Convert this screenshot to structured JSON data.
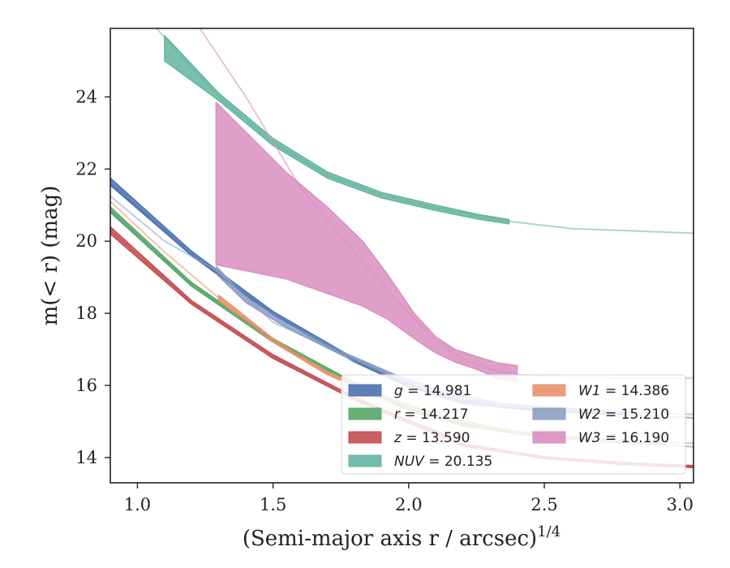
{
  "chart_data": {
    "type": "line",
    "xlabel": "(Semi-major axis r / arcsec)",
    "xlabel_exp": "1/4",
    "ylabel": "m(< r) (mag)",
    "xlim": [
      0.9,
      3.05
    ],
    "ylim": [
      25.9,
      13.3
    ],
    "y_inverted": true,
    "xticks": [
      1.0,
      1.5,
      2.0,
      2.5,
      3.0
    ],
    "xtick_labels": [
      "1.0",
      "1.5",
      "2.0",
      "2.5",
      "3.0"
    ],
    "yticks": [
      14,
      16,
      18,
      20,
      22,
      24
    ],
    "ytick_labels": [
      "14",
      "16",
      "18",
      "20",
      "22",
      "24"
    ],
    "legend_placement": "lower-right",
    "series": [
      {
        "band": "g",
        "total": "14.981",
        "color": "#4C72B0",
        "band_x": [
          0.9,
          1.2,
          1.5,
          1.8,
          2.0,
          2.2,
          2.5,
          2.8
        ],
        "band_lo": [
          21.55,
          19.6,
          17.95,
          16.65,
          15.95,
          15.5,
          15.28,
          15.18
        ],
        "band_hi": [
          21.75,
          19.72,
          18.05,
          16.75,
          16.05,
          15.58,
          15.36,
          15.26
        ],
        "line_x": [
          0.9,
          1.2,
          1.5,
          1.8,
          2.0,
          2.2,
          2.5,
          2.8,
          3.05
        ],
        "line_y": [
          21.6,
          19.62,
          17.98,
          16.7,
          16.0,
          15.52,
          15.3,
          15.18,
          15.1
        ]
      },
      {
        "band": "r",
        "total": "14.217",
        "color": "#55A868",
        "band_x": [
          0.9,
          1.2,
          1.5,
          1.8,
          2.0,
          2.2,
          2.5,
          2.8,
          2.95
        ],
        "band_lo": [
          20.8,
          18.75,
          17.2,
          16.0,
          15.3,
          14.88,
          14.55,
          14.4,
          14.36
        ],
        "band_hi": [
          20.95,
          18.85,
          17.3,
          16.08,
          15.38,
          14.95,
          14.62,
          14.46,
          14.42
        ],
        "line_x": [
          0.9,
          1.2,
          1.5,
          1.8,
          2.0,
          2.2,
          2.5,
          2.8,
          3.05
        ],
        "line_y": [
          20.85,
          18.8,
          17.25,
          16.04,
          15.34,
          14.9,
          14.58,
          14.42,
          14.3
        ]
      },
      {
        "band": "z",
        "total": "13.590",
        "color": "#C44E52",
        "band_x": [
          0.9,
          1.2,
          1.5,
          1.8,
          2.0,
          2.1,
          2.2,
          2.5,
          2.8,
          3.05
        ],
        "band_lo": [
          20.2,
          18.25,
          16.75,
          15.6,
          14.95,
          14.65,
          14.32,
          13.97,
          13.8,
          13.72
        ],
        "band_hi": [
          20.4,
          18.35,
          16.85,
          15.68,
          15.03,
          14.75,
          14.38,
          14.03,
          13.86,
          13.78
        ],
        "line_x": [
          0.9,
          1.2,
          1.5,
          1.8,
          2.0,
          2.1,
          2.2,
          2.5,
          2.8,
          3.05
        ],
        "line_y": [
          20.3,
          18.3,
          16.8,
          15.64,
          14.99,
          14.7,
          14.35,
          14.0,
          13.83,
          13.75
        ]
      },
      {
        "band": "NUV",
        "total": "20.135",
        "color": "#64B5A0",
        "band_x": [
          1.1,
          1.3,
          1.5,
          1.7,
          1.9,
          2.1,
          2.25,
          2.37
        ],
        "band_lo": [
          25.0,
          23.9,
          22.65,
          21.75,
          21.2,
          20.85,
          20.62,
          20.48
        ],
        "band_hi": [
          25.7,
          24.1,
          22.85,
          21.92,
          21.35,
          21.0,
          20.75,
          20.6
        ],
        "line_x": [
          1.07,
          1.3,
          1.5,
          1.7,
          1.9,
          2.1,
          2.37,
          2.6,
          3.05
        ],
        "line_y": [
          25.9,
          24.0,
          22.75,
          21.83,
          21.28,
          20.92,
          20.55,
          20.35,
          20.22
        ]
      },
      {
        "band": "W1",
        "total": "14.386",
        "color": "#E8926B",
        "band_x": [
          1.3,
          1.5,
          1.7,
          1.9,
          2.1,
          2.3,
          2.5,
          2.7
        ],
        "band_lo": [
          18.35,
          17.2,
          16.3,
          15.65,
          15.15,
          14.8,
          14.55,
          14.45
        ],
        "band_hi": [
          18.5,
          17.3,
          16.38,
          15.72,
          15.22,
          14.86,
          14.6,
          14.5
        ],
        "line_x": [
          0.9,
          1.1,
          1.3,
          1.5,
          1.7,
          1.9,
          2.1,
          2.3,
          2.5,
          2.8,
          3.05
        ],
        "line_y": [
          21.1,
          19.7,
          18.42,
          17.25,
          16.34,
          15.68,
          15.18,
          14.83,
          14.57,
          14.45,
          14.4
        ]
      },
      {
        "band": "W2",
        "total": "15.210",
        "color": "#8C9EC4",
        "band_x": [
          1.29,
          1.4,
          1.55,
          1.75,
          1.95,
          2.15,
          2.35,
          2.55,
          2.75
        ],
        "band_lo": [
          19.1,
          18.3,
          17.6,
          16.85,
          16.2,
          15.7,
          15.42,
          15.3,
          15.22
        ],
        "band_hi": [
          19.3,
          18.45,
          17.72,
          16.95,
          16.3,
          15.8,
          15.5,
          15.38,
          15.3
        ],
        "line_x": [
          0.9,
          1.1,
          1.29,
          1.5,
          1.75,
          1.95,
          2.15,
          2.35,
          2.55,
          2.75,
          3.05
        ],
        "line_y": [
          21.25,
          20.0,
          19.2,
          17.75,
          16.9,
          16.25,
          15.75,
          15.46,
          15.34,
          15.26,
          15.2
        ]
      },
      {
        "band": "W3",
        "total": "16.190",
        "color": "#D88FC0",
        "band_x": [
          1.29,
          1.55,
          1.7,
          1.83,
          1.92,
          2.02,
          2.1,
          2.17,
          2.25,
          2.33,
          2.4
        ],
        "band_lo": [
          19.35,
          18.95,
          18.55,
          18.2,
          17.85,
          17.3,
          16.9,
          16.65,
          16.45,
          16.2,
          16.1
        ],
        "band_hi": [
          23.85,
          21.9,
          20.95,
          20.0,
          19.1,
          18.0,
          17.35,
          17.0,
          16.8,
          16.62,
          16.55
        ],
        "line_x": [
          1.23,
          1.4,
          1.6,
          1.8,
          2.0,
          2.1,
          2.2,
          2.3,
          2.4,
          2.6,
          2.8,
          3.05
        ],
        "line_y": [
          25.9,
          24.0,
          21.5,
          19.7,
          18.0,
          17.25,
          16.75,
          16.45,
          16.3,
          16.22,
          16.2,
          16.2
        ]
      }
    ]
  }
}
